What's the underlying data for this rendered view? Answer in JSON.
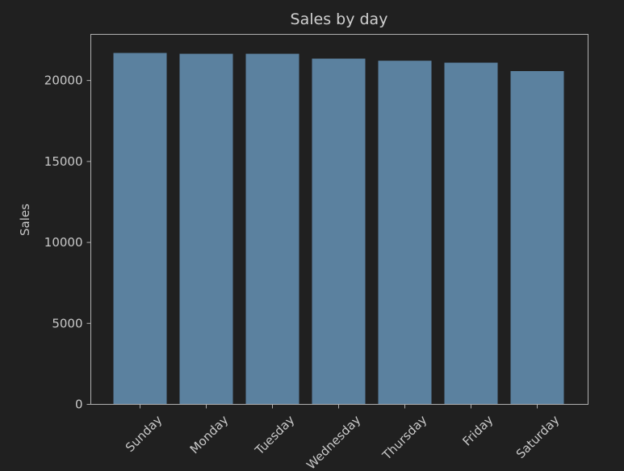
{
  "chart_data": {
    "type": "bar",
    "title": "Sales by day",
    "xlabel": "",
    "ylabel": "Sales",
    "categories": [
      "Sunday",
      "Monday",
      "Tuesday",
      "Wednesday",
      "Thursday",
      "Friday",
      "Saturday"
    ],
    "values": [
      21700,
      21650,
      21650,
      21350,
      21220,
      21100,
      20580
    ],
    "ylim": [
      0,
      22850
    ],
    "yticks": [
      0,
      5000,
      10000,
      15000,
      20000
    ],
    "grid": false,
    "legend": "none",
    "colors": {
      "background": "#202020",
      "bar": "#5b819f",
      "text": "#c8c8c8",
      "spine": "#b0b0b0"
    }
  }
}
